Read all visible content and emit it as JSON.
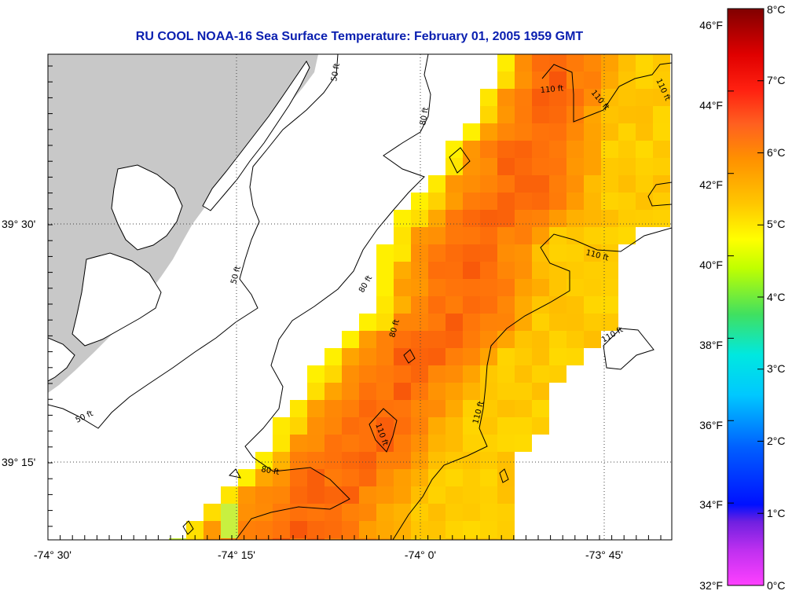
{
  "title": "RU COOL  NOAA-16  Sea Surface Temperature:  February 01, 2005 1959 GMT",
  "map": {
    "land_color": "#c8c8c8",
    "lat_labels": [
      {
        "text": "39° 30'",
        "lat": 39.5
      },
      {
        "text": "39° 15'",
        "lat": 39.25
      }
    ],
    "lon_labels": [
      {
        "text": "-74° 30'",
        "lon": -74.5
      },
      {
        "text": "-74° 15'",
        "lon": -74.25
      },
      {
        "text": "-74° 0'",
        "lon": -74.0
      },
      {
        "text": "-73° 45'",
        "lon": -73.75
      }
    ],
    "depth_contours": [
      "50 ft",
      "80 ft",
      "110 ft"
    ]
  },
  "colorbar": {
    "fahrenheit": [
      "32°F",
      "34°F",
      "36°F",
      "38°F",
      "40°F",
      "42°F",
      "44°F",
      "46°F"
    ],
    "celsius": [
      "0°C",
      "1°C",
      "2°C",
      "3°C",
      "4°C",
      "5°C",
      "6°C",
      "7°C",
      "8°C"
    ],
    "colors": [
      "#ff40ff",
      "#8020e0",
      "#0010ff",
      "#0080ff",
      "#00e0ff",
      "#40e060",
      "#c0ff00",
      "#ffff00",
      "#ffb000",
      "#ff7020",
      "#ff2010",
      "#e00000",
      "#800000"
    ]
  }
}
